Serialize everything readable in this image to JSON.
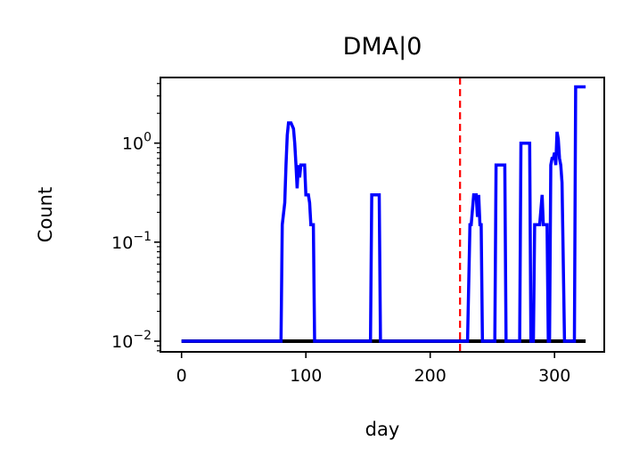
{
  "chart_data": {
    "type": "line",
    "title": "DMA|0",
    "xlabel": "day",
    "ylabel": "Count",
    "yscale": "log",
    "grid": false,
    "xlim": [
      -17,
      340
    ],
    "ylim": [
      0.0078,
      4.6
    ],
    "xticks": [
      0,
      100,
      200,
      300
    ],
    "xtick_labels": [
      "0",
      "100",
      "200",
      "300"
    ],
    "yticks": [
      {
        "value": 0.01,
        "base": "10",
        "exp": "−2"
      },
      {
        "value": 0.1,
        "base": "10",
        "exp": "−1"
      },
      {
        "value": 1,
        "base": "10",
        "exp": "0"
      }
    ],
    "vline": {
      "x": 224,
      "color": "#ff0000",
      "style": "dashed"
    },
    "series": [
      {
        "color": "#000000",
        "points": [
          [
            0,
            0.01
          ],
          [
            325,
            0.01
          ]
        ]
      },
      {
        "color": "#0000ff",
        "points": [
          [
            0,
            0.01
          ],
          [
            80,
            0.01
          ],
          [
            81,
            0.15
          ],
          [
            83,
            0.25
          ],
          [
            84,
            0.6
          ],
          [
            85,
            1.2
          ],
          [
            86,
            1.6
          ],
          [
            88,
            1.6
          ],
          [
            90,
            1.4
          ],
          [
            91,
            1.0
          ],
          [
            92,
            0.6
          ],
          [
            93,
            0.35
          ],
          [
            94,
            0.6
          ],
          [
            95,
            0.45
          ],
          [
            96,
            0.6
          ],
          [
            99,
            0.6
          ],
          [
            100,
            0.3
          ],
          [
            102,
            0.3
          ],
          [
            103,
            0.25
          ],
          [
            104,
            0.15
          ],
          [
            106,
            0.15
          ],
          [
            107,
            0.01
          ],
          [
            152,
            0.01
          ],
          [
            153,
            0.3
          ],
          [
            159,
            0.3
          ],
          [
            160,
            0.01
          ],
          [
            230,
            0.01
          ],
          [
            232,
            0.15
          ],
          [
            233,
            0.15
          ],
          [
            235,
            0.3
          ],
          [
            237,
            0.3
          ],
          [
            238,
            0.18
          ],
          [
            239,
            0.3
          ],
          [
            240,
            0.15
          ],
          [
            241,
            0.15
          ],
          [
            242,
            0.01
          ],
          [
            252,
            0.01
          ],
          [
            253,
            0.6
          ],
          [
            260,
            0.6
          ],
          [
            261,
            0.01
          ],
          [
            272,
            0.01
          ],
          [
            273,
            1.0
          ],
          [
            280,
            1.0
          ],
          [
            281,
            0.01
          ],
          [
            283,
            0.01
          ],
          [
            284,
            0.15
          ],
          [
            288,
            0.15
          ],
          [
            290,
            0.3
          ],
          [
            291,
            0.15
          ],
          [
            294,
            0.15
          ],
          [
            295,
            0.01
          ],
          [
            296,
            0.01
          ],
          [
            297,
            0.6
          ],
          [
            298,
            0.7
          ],
          [
            299,
            0.7
          ],
          [
            300,
            0.8
          ],
          [
            301,
            0.6
          ],
          [
            302,
            1.3
          ],
          [
            303,
            1.1
          ],
          [
            304,
            0.7
          ],
          [
            305,
            0.6
          ],
          [
            306,
            0.4
          ],
          [
            308,
            0.01
          ],
          [
            316,
            0.01
          ],
          [
            317,
            3.7
          ],
          [
            325,
            3.7
          ]
        ]
      }
    ]
  }
}
